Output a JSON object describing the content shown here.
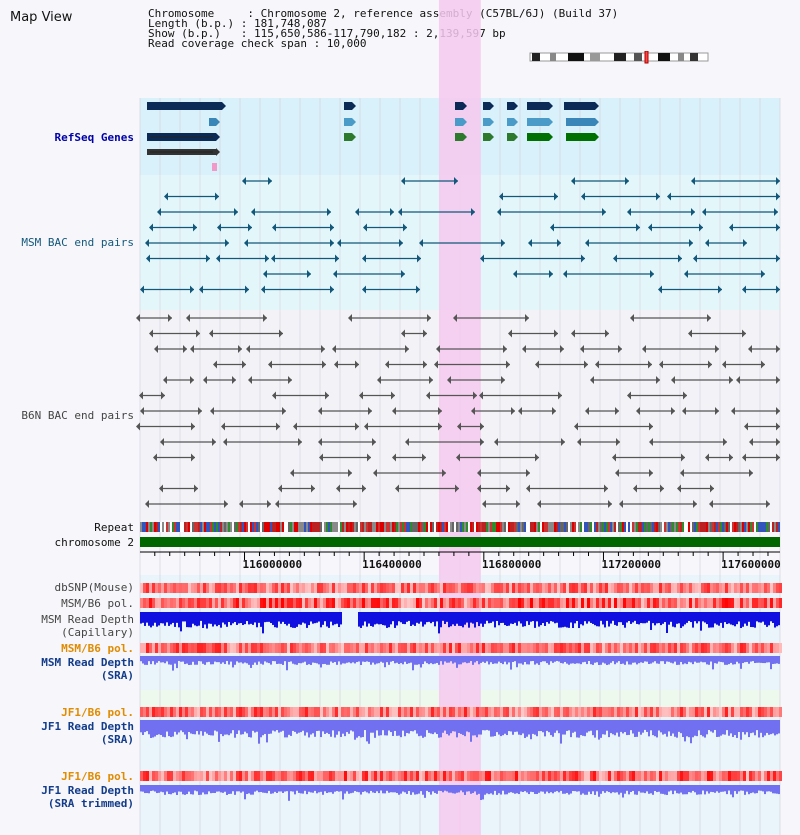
{
  "app": {
    "title": "Map View"
  },
  "header": {
    "line1": "Chromosome     : Chromosome 2, reference assembly (C57BL/6J) (Build 37)",
    "line2": "Length (b.p.) : 181,748,087",
    "line3": "Show (b.p.)   : 115,650,586-117,790,182 : 2,139,597 bp",
    "line4": "Read coverage check span : 10,000"
  },
  "tracks": {
    "refseq": "RefSeq Genes",
    "msm_bac": "MSM BAC end pairs",
    "b6n_bac": "B6N BAC end pairs",
    "repeat": "Repeat",
    "chromosome": "chromosome 2",
    "dbsnp": "dbSNP(Mouse)",
    "msm_b6_pol": "MSM/B6 pol.",
    "msm_depth_cap_1": "MSM Read Depth",
    "msm_depth_cap_2": "(Capillary)",
    "msm_b6_pol_sra": "MSM/B6 pol.",
    "msm_depth_sra_1": "MSM Read Depth",
    "msm_depth_sra_2": "(SRA)",
    "jf1_b6_pol": "JF1/B6 pol.",
    "jf1_depth_1": "JF1 Read Depth",
    "jf1_depth_2": "(SRA)",
    "jf1_b6_pol_tr": "JF1/B6 pol.",
    "jf1_depth_tr_1": "JF1 Read Depth",
    "jf1_depth_tr_2": "(SRA trimmed)"
  },
  "axis": {
    "ticks": [
      {
        "label": "116000000",
        "pos": 116000000
      },
      {
        "label": "116400000",
        "pos": 116400000
      },
      {
        "label": "116800000",
        "pos": 116800000
      },
      {
        "label": "117200000",
        "pos": 117200000
      },
      {
        "label": "117600000",
        "pos": 117600000
      }
    ],
    "start": 115650586,
    "end": 117790182,
    "highlight_start": 116650000,
    "highlight_end": 116790000
  },
  "colors": {
    "refseq_bg": "#d9f1fa",
    "msm_bg": "#e3f7fb",
    "b6n_bg": "#f3f3f7",
    "highlight": "#f6c9ef",
    "chromosome": "#006600",
    "depth_cap": "#1010e0",
    "depth_sra": "#7070f0",
    "teal": "#13577a",
    "grey": "#555555"
  }
}
